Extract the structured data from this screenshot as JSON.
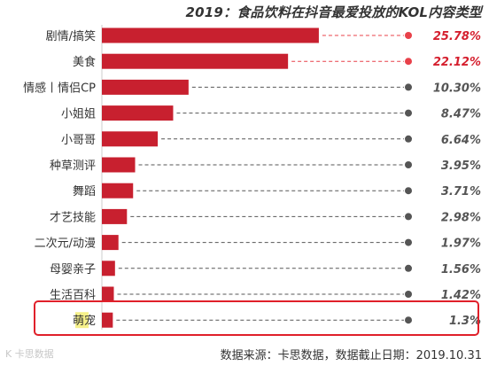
{
  "chart_data": {
    "type": "bar",
    "orientation": "horizontal",
    "title": "2019：食品饮料在抖音最爱投放的KOL内容类型",
    "categories": [
      "剧情/搞笑",
      "美食",
      "情感丨情侣CP",
      "小姐姐",
      "小哥哥",
      "种草测评",
      "舞蹈",
      "才艺技能",
      "二次元/动漫",
      "母婴亲子",
      "生活百科",
      "萌宠"
    ],
    "values": [
      25.78,
      22.12,
      10.3,
      8.47,
      6.64,
      3.95,
      3.71,
      2.98,
      1.97,
      1.56,
      1.42,
      1.3
    ],
    "value_labels": [
      "25.78%",
      "22.12%",
      "10.30%",
      "8.47%",
      "6.64%",
      "3.95%",
      "3.71%",
      "2.98%",
      "1.97%",
      "1.56%",
      "1.42%",
      "1.3%"
    ],
    "highlight_label_colors": [
      "#d51f2e",
      "#d51f2e",
      "#555555",
      "#555555",
      "#555555",
      "#555555",
      "#555555",
      "#555555",
      "#555555",
      "#555555",
      "#555555",
      "#555555"
    ],
    "highlighted_category": "萌宠",
    "highlight_text_bg": "#f5f08a",
    "bar_color": "#c8202f",
    "accent_color": "#e8414a",
    "connector_color": "#555555",
    "xlim": [
      0,
      30
    ]
  },
  "source_note": "数据来源：卡思数据，数据截止日期：2019.10.31",
  "watermark": "K 卡思数据"
}
